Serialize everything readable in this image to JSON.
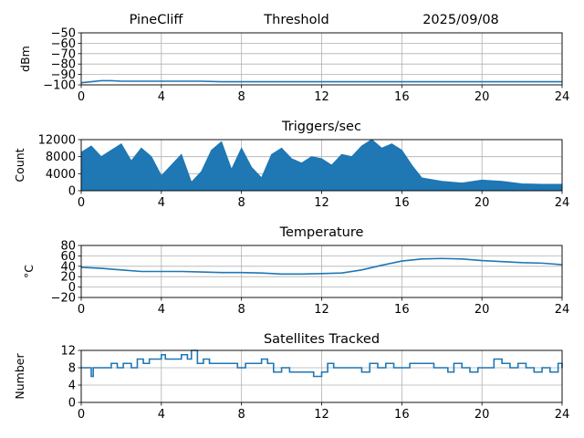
{
  "header": {
    "station": "PineCliff",
    "subtitle": "Threshold",
    "date": "2025/09/08"
  },
  "colors": {
    "line": "#1f77b4",
    "grid": "#b0b0b0",
    "axis": "#000000"
  },
  "chart_data": [
    {
      "type": "line",
      "title": "",
      "xlabel": "",
      "ylabel": "dBm",
      "xlim": [
        0,
        24
      ],
      "ylim": [
        -100,
        -50
      ],
      "xticks": [
        "0",
        "4",
        "8",
        "12",
        "16",
        "20",
        "24"
      ],
      "yticks": [
        "−100",
        "−90",
        "−80",
        "−70",
        "−60",
        "−50"
      ],
      "grid": true,
      "series": [
        {
          "x": [
            0,
            0.5,
            1,
            1.5,
            2,
            3,
            4,
            5,
            6,
            7,
            8,
            9,
            10,
            11,
            12,
            13,
            14,
            15,
            16,
            17,
            18,
            19,
            20,
            21,
            22,
            23,
            24
          ],
          "values": [
            -98,
            -97,
            -96,
            -96,
            -96.5,
            -96.5,
            -96.5,
            -96.5,
            -96.5,
            -97,
            -97,
            -97,
            -97,
            -97,
            -97,
            -97,
            -97,
            -97,
            -97,
            -97,
            -97,
            -97,
            -97,
            -97,
            -97,
            -97,
            -97
          ]
        }
      ]
    },
    {
      "type": "area",
      "title": "Triggers/sec",
      "xlabel": "",
      "ylabel": "Count",
      "xlim": [
        0,
        24
      ],
      "ylim": [
        0,
        12000
      ],
      "xticks": [
        "0",
        "4",
        "8",
        "12",
        "16",
        "20",
        "24"
      ],
      "yticks": [
        "0",
        "4000",
        "8000",
        "12000"
      ],
      "grid": true,
      "series": [
        {
          "x": [
            0,
            0.5,
            1,
            1.5,
            2,
            2.5,
            3,
            3.5,
            4,
            4.5,
            5,
            5.5,
            6,
            6.5,
            7,
            7.5,
            8,
            8.5,
            9,
            9.5,
            10,
            10.5,
            11,
            11.5,
            12,
            12.5,
            13,
            13.5,
            14,
            14.5,
            15,
            15.5,
            16,
            16.5,
            17,
            18,
            19,
            20,
            21,
            22,
            23,
            24
          ],
          "values": [
            9000,
            10500,
            8000,
            9500,
            11000,
            7000,
            10000,
            8000,
            3500,
            6000,
            8500,
            2000,
            4500,
            9500,
            11500,
            5000,
            10000,
            5500,
            3000,
            8500,
            10000,
            7500,
            6500,
            8000,
            7500,
            6000,
            8500,
            8000,
            10500,
            12000,
            10000,
            11000,
            9500,
            6000,
            3000,
            2200,
            1800,
            2500,
            2200,
            1600,
            1500,
            1500
          ]
        }
      ]
    },
    {
      "type": "line",
      "title": "Temperature",
      "xlabel": "",
      "ylabel": "°C",
      "xlim": [
        0,
        24
      ],
      "ylim": [
        -20,
        80
      ],
      "xticks": [
        "0",
        "4",
        "8",
        "12",
        "16",
        "20",
        "24"
      ],
      "yticks": [
        "−20",
        "0",
        "20",
        "40",
        "60",
        "80"
      ],
      "grid": true,
      "series": [
        {
          "x": [
            0,
            1,
            2,
            3,
            4,
            5,
            6,
            7,
            8,
            9,
            10,
            11,
            12,
            13,
            14,
            15,
            16,
            17,
            18,
            19,
            20,
            21,
            22,
            23,
            24
          ],
          "values": [
            38,
            36,
            33,
            30,
            30,
            30,
            29,
            28,
            28,
            27,
            25,
            25,
            26,
            27,
            33,
            42,
            50,
            54,
            55,
            54,
            51,
            49,
            47,
            46,
            43
          ]
        }
      ]
    },
    {
      "type": "line",
      "title": "Satellites Tracked",
      "xlabel": "",
      "ylabel": "Number",
      "xlim": [
        0,
        24
      ],
      "ylim": [
        0,
        12
      ],
      "xticks": [
        "0",
        "4",
        "8",
        "12",
        "16",
        "20",
        "24"
      ],
      "yticks": [
        "0",
        "4",
        "8",
        "12"
      ],
      "grid": true,
      "series": [
        {
          "x": [
            0,
            0.3,
            0.5,
            0.6,
            0.9,
            1.2,
            1.5,
            1.8,
            2.1,
            2.5,
            2.8,
            3.1,
            3.4,
            3.7,
            4.0,
            4.2,
            4.5,
            5.0,
            5.3,
            5.5,
            5.8,
            6.1,
            6.4,
            6.8,
            7.1,
            7.5,
            7.8,
            8.2,
            8.6,
            9.0,
            9.3,
            9.6,
            10.0,
            10.4,
            10.8,
            11.2,
            11.6,
            12.0,
            12.3,
            12.6,
            13.0,
            13.4,
            13.7,
            14.0,
            14.4,
            14.8,
            15.2,
            15.6,
            16.0,
            16.4,
            16.8,
            17.2,
            17.6,
            18.0,
            18.3,
            18.6,
            19.0,
            19.4,
            19.8,
            20.2,
            20.6,
            21.0,
            21.4,
            21.8,
            22.2,
            22.6,
            23.0,
            23.4,
            23.8,
            24
          ],
          "values": [
            8,
            8,
            6,
            8,
            8,
            8,
            9,
            8,
            9,
            8,
            10,
            9,
            10,
            10,
            11,
            10,
            10,
            11,
            10,
            12,
            9,
            10,
            9,
            9,
            9,
            9,
            8,
            9,
            9,
            10,
            9,
            7,
            8,
            7,
            7,
            7,
            6,
            7,
            9,
            8,
            8,
            8,
            8,
            7,
            9,
            8,
            9,
            8,
            8,
            9,
            9,
            9,
            8,
            8,
            7,
            9,
            8,
            7,
            8,
            8,
            10,
            9,
            8,
            9,
            8,
            7,
            8,
            7,
            9,
            8
          ]
        }
      ]
    }
  ]
}
